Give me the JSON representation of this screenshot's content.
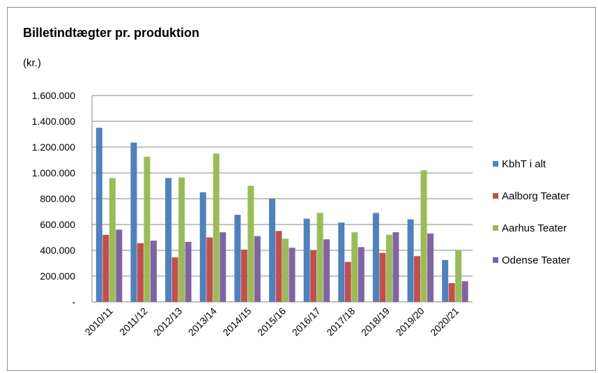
{
  "chart_data": {
    "type": "bar",
    "title": "Billetindtægter pr. produktion",
    "subtitle": "(kr.)",
    "categories": [
      "2010/11",
      "2011/12",
      "2012/13",
      "2013/14",
      "2014/15",
      "2015/16",
      "2016/17",
      "2017/18",
      "2018/19",
      "2019/20",
      "2020/21"
    ],
    "series": [
      {
        "name": "KbhT i alt",
        "color": "#4f81bd",
        "values": [
          1350000,
          1235000,
          960000,
          850000,
          675000,
          800000,
          645000,
          615000,
          690000,
          640000,
          325000
        ]
      },
      {
        "name": "Aalborg Teater",
        "color": "#c0504d",
        "values": [
          520000,
          455000,
          345000,
          500000,
          405000,
          550000,
          400000,
          310000,
          380000,
          355000,
          145000
        ]
      },
      {
        "name": "Aarhus Teater",
        "color": "#9bbb59",
        "values": [
          960000,
          1125000,
          965000,
          1150000,
          900000,
          490000,
          690000,
          540000,
          520000,
          1020000,
          400000
        ]
      },
      {
        "name": "Odense Teater",
        "color": "#8064a2",
        "values": [
          560000,
          475000,
          465000,
          540000,
          510000,
          420000,
          485000,
          425000,
          540000,
          530000,
          160000
        ]
      }
    ],
    "yticks": [
      "-",
      "200.000",
      "400.000",
      "600.000",
      "800.000",
      "1.000.000",
      "1.200.000",
      "1.400.000",
      "1.600.000"
    ],
    "ylim": [
      0,
      1600000
    ],
    "grid": true,
    "legend": "right"
  }
}
